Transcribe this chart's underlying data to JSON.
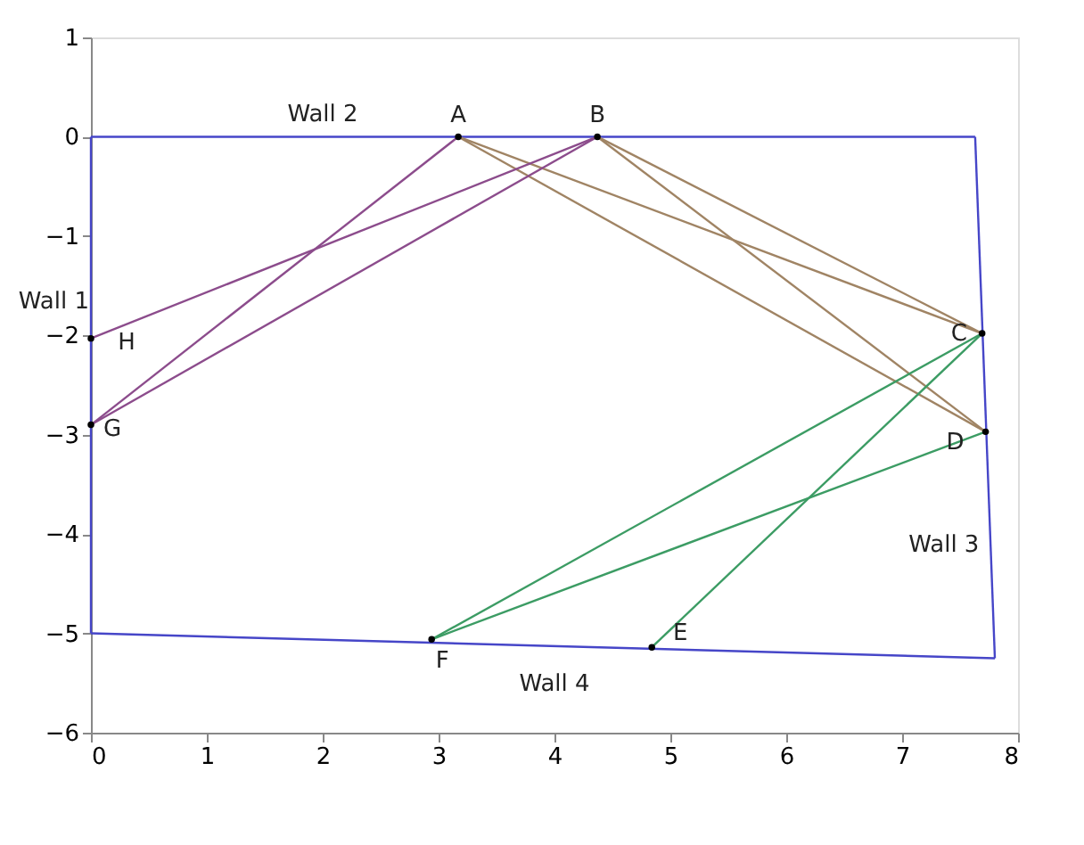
{
  "chart_data": {
    "type": "line",
    "xlim": [
      0,
      8
    ],
    "ylim": [
      -6,
      1
    ],
    "xticks": [
      0,
      1,
      2,
      3,
      4,
      5,
      6,
      7,
      8
    ],
    "yticks": [
      -6,
      -5,
      -4,
      -3,
      -2,
      -1,
      0,
      1
    ],
    "grid": false,
    "legend": false,
    "marker": "none",
    "line_style": "solid",
    "series": [
      {
        "color": "#4646c8",
        "x": [
          0,
          0
        ],
        "values": [
          -5.0,
          0
        ]
      },
      {
        "color": "#4646c8",
        "x": [
          0,
          7.63
        ],
        "values": [
          0,
          0
        ]
      },
      {
        "color": "#4646c8",
        "x": [
          7.63,
          7.8
        ],
        "values": [
          0,
          -5.25
        ]
      },
      {
        "color": "#4646c8",
        "x": [
          0,
          7.8
        ],
        "values": [
          -5.0,
          -5.25
        ]
      },
      {
        "color": "#a08464",
        "x": [
          3.17,
          7.69
        ],
        "values": [
          0,
          -1.98
        ]
      },
      {
        "color": "#a08464",
        "x": [
          3.17,
          7.72
        ],
        "values": [
          0,
          -2.97
        ]
      },
      {
        "color": "#a08464",
        "x": [
          4.37,
          7.69
        ],
        "values": [
          0,
          -1.98
        ]
      },
      {
        "color": "#a08464",
        "x": [
          4.37,
          7.72
        ],
        "values": [
          0,
          -2.97
        ]
      },
      {
        "color": "#3c9c64",
        "x": [
          2.94,
          7.69
        ],
        "values": [
          -5.06,
          -1.98
        ]
      },
      {
        "color": "#3c9c64",
        "x": [
          4.84,
          7.69
        ],
        "values": [
          -5.14,
          -1.98
        ]
      },
      {
        "color": "#3c9c64",
        "x": [
          2.94,
          7.72
        ],
        "values": [
          -5.06,
          -2.97
        ]
      },
      {
        "color": "#8c4c8c",
        "x": [
          0,
          3.17
        ],
        "values": [
          -2.9,
          0
        ]
      },
      {
        "color": "#8c4c8c",
        "x": [
          0,
          4.37
        ],
        "values": [
          -2.9,
          0
        ]
      },
      {
        "color": "#8c4c8c",
        "x": [
          0,
          4.37
        ],
        "values": [
          -2.03,
          0
        ]
      },
      {
        "type": "scatter",
        "marker": "circle",
        "color": "#000000",
        "x": [
          3.17,
          4.37,
          7.69,
          7.72,
          4.84,
          2.94,
          0,
          0
        ],
        "values": [
          0,
          0,
          -1.98,
          -2.97,
          -5.14,
          -5.06,
          -2.9,
          -2.03
        ],
        "value_labels": [
          "A",
          "B",
          "C",
          "D",
          "E",
          "F",
          "G",
          "H"
        ]
      }
    ],
    "annotations": [
      "Wall 2",
      "Wall 1",
      "Wall 3",
      "Wall 4"
    ]
  }
}
